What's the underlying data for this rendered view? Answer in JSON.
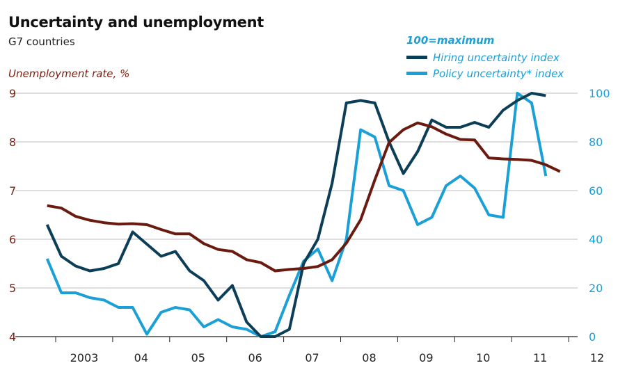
{
  "chart_data": {
    "type": "line",
    "title": "Uncertainty and unemployment",
    "subtitle": "G7 countries",
    "left_axis": {
      "label": "Unemployment rate, %",
      "ylim": [
        4,
        9
      ],
      "ticks": [
        "4",
        "5",
        "6",
        "7",
        "8",
        "9"
      ]
    },
    "right_axis": {
      "label": "100=maximum",
      "ylim": [
        0,
        100
      ],
      "ticks": [
        "0",
        "20",
        "40",
        "60",
        "80",
        "100"
      ]
    },
    "x_ticks": [
      "2003",
      "04",
      "05",
      "06",
      "07",
      "08",
      "09",
      "10",
      "11",
      "12"
    ],
    "grid": true,
    "legend": "top-right",
    "x": [
      "2002 Q4",
      "2003 Q1",
      "2003 Q2",
      "2003 Q3",
      "2003 Q4",
      "2004 Q1",
      "2004 Q2",
      "2004 Q3",
      "2004 Q4",
      "2005 Q1",
      "2005 Q2",
      "2005 Q3",
      "2005 Q4",
      "2006 Q1",
      "2006 Q2",
      "2006 Q3",
      "2006 Q4",
      "2007 Q1",
      "2007 Q2",
      "2007 Q3",
      "2007 Q4",
      "2008 Q1",
      "2008 Q2",
      "2008 Q3",
      "2008 Q4",
      "2009 Q1",
      "2009 Q2",
      "2009 Q3",
      "2009 Q4",
      "2010 Q1",
      "2010 Q2",
      "2010 Q3",
      "2010 Q4",
      "2011 Q1",
      "2011 Q2",
      "2011 Q3",
      "2011 Q4",
      "2012 Q1"
    ],
    "series": [
      {
        "name": "Unemployment rate, %",
        "axis": "left",
        "color": "#6b1a10",
        "values": [
          6.69,
          6.64,
          6.47,
          6.39,
          6.34,
          6.31,
          6.32,
          6.3,
          6.2,
          6.11,
          6.11,
          5.91,
          5.79,
          5.75,
          5.58,
          5.52,
          5.35,
          5.38,
          5.4,
          5.44,
          5.58,
          5.92,
          6.4,
          7.22,
          7.99,
          8.25,
          8.39,
          8.31,
          8.16,
          8.05,
          8.04,
          7.67,
          7.65,
          7.64,
          7.62,
          7.53,
          7.39,
          null
        ]
      },
      {
        "name": "Hiring uncertainty index",
        "axis": "right",
        "color": "#0c3e57",
        "values": [
          46,
          33,
          29,
          27,
          28,
          30,
          43,
          38,
          33,
          35,
          27,
          23,
          15,
          21,
          6,
          0,
          0,
          3,
          30,
          40,
          63,
          96,
          97,
          96,
          80,
          67,
          76,
          89,
          86,
          86,
          88,
          86,
          93,
          97,
          100,
          99,
          null,
          null
        ]
      },
      {
        "name": "Policy uncertainty* index",
        "axis": "right",
        "color": "#1aa0d6",
        "values": [
          32,
          18,
          18,
          16,
          15,
          12,
          12,
          1,
          10,
          12,
          11,
          4,
          7,
          4,
          3,
          0,
          2,
          17,
          31,
          36,
          23,
          40,
          85,
          82,
          62,
          60,
          46,
          49,
          62,
          66,
          61,
          50,
          49,
          100,
          96,
          66,
          null,
          null
        ]
      }
    ]
  }
}
